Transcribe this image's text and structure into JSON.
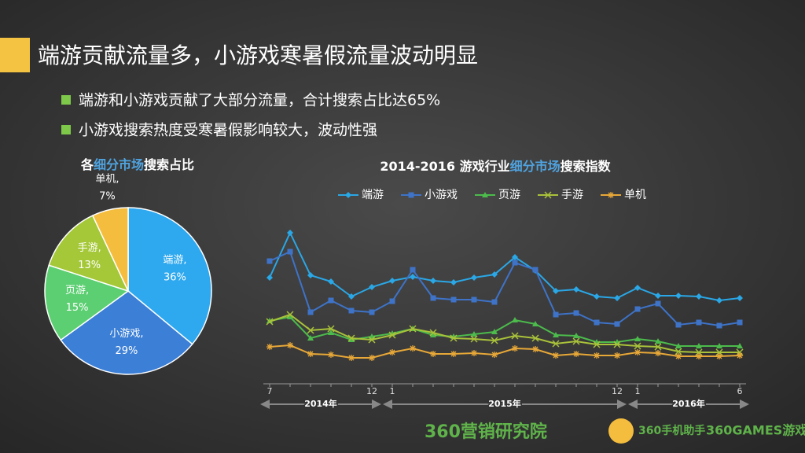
{
  "title": "端游贡献流量多，小游戏寒暑假流量波动明显",
  "bullets": [
    "端游和小游戏贡献了大部分流量，合计搜索占比达65%",
    "小游戏搜索热度受寒暑假影响较大，波动性强"
  ],
  "chart_data": [
    {
      "type": "pie",
      "title_parts": [
        "各",
        "细分市场",
        "搜索占比"
      ],
      "categories": [
        "端游,",
        "小游戏,",
        "页游,",
        "手游,",
        "单机,"
      ],
      "values": [
        36,
        29,
        15,
        13,
        7
      ],
      "value_labels": [
        "36%",
        "29%",
        "15%",
        "13%",
        "7%"
      ],
      "colors": [
        "#2ea8ef",
        "#3b7fd6",
        "#5ccf72",
        "#a4c837",
        "#f4bd3e"
      ]
    },
    {
      "type": "line",
      "title_parts": [
        "2014-2016 游戏行业",
        "细分市场",
        "搜索指数"
      ],
      "categories": [
        "7",
        null,
        null,
        null,
        null,
        "12",
        "1",
        null,
        null,
        null,
        null,
        null,
        null,
        null,
        null,
        null,
        null,
        "12",
        "1",
        null,
        null,
        null,
        null,
        "6"
      ],
      "periods": [
        {
          "label": "2014年",
          "start": 0,
          "end": 5
        },
        {
          "label": "2015年",
          "start": 6,
          "end": 17
        },
        {
          "label": "2016年",
          "start": 18,
          "end": 23
        }
      ],
      "ylim": [
        0,
        220
      ],
      "series": [
        {
          "name": "端游",
          "color": "#2aa7e6",
          "marker": "diamond",
          "values": [
            147,
            204,
            150,
            142,
            123,
            135,
            143,
            148,
            143,
            141,
            147,
            151,
            173,
            156,
            130,
            132,
            123,
            121,
            134,
            124,
            124,
            123,
            118,
            121
          ]
        },
        {
          "name": "小游戏",
          "color": "#3e73c8",
          "marker": "square",
          "values": [
            168,
            180,
            103,
            118,
            105,
            103,
            117,
            157,
            121,
            119,
            119,
            116,
            166,
            157,
            100,
            102,
            90,
            88,
            107,
            114,
            87,
            90,
            86,
            90
          ]
        },
        {
          "name": "页游",
          "color": "#4cbb4c",
          "marker": "triangle",
          "values": [
            92,
            97,
            70,
            77,
            68,
            72,
            76,
            82,
            74,
            72,
            75,
            78,
            93,
            88,
            74,
            73,
            65,
            65,
            69,
            66,
            60,
            60,
            60,
            60
          ]
        },
        {
          "name": "手游",
          "color": "#a9c23a",
          "marker": "x",
          "values": [
            91,
            100,
            80,
            82,
            70,
            68,
            74,
            82,
            77,
            70,
            69,
            67,
            73,
            70,
            63,
            66,
            62,
            62,
            60,
            59,
            53,
            52,
            52,
            52
          ]
        },
        {
          "name": "单机",
          "color": "#e8a838",
          "marker": "star",
          "values": [
            59,
            61,
            50,
            49,
            45,
            45,
            52,
            57,
            50,
            50,
            51,
            49,
            57,
            56,
            48,
            50,
            48,
            48,
            52,
            51,
            47,
            47,
            47,
            48
          ]
        }
      ]
    }
  ],
  "footer": [
    "360营销研究院",
    "360手机助手",
    "360GAMES游戏"
  ]
}
